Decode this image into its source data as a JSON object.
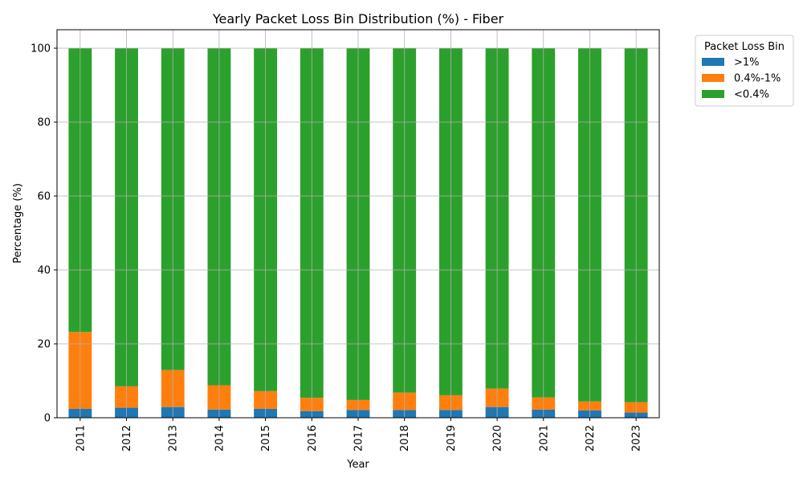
{
  "chart_data": {
    "type": "bar",
    "stacked": true,
    "title": "Yearly Packet Loss Bin Distribution (%) - Fiber",
    "xlabel": "Year",
    "ylabel": "Percentage (%)",
    "ylim": [
      0,
      105
    ],
    "yticks": [
      0,
      20,
      40,
      60,
      80,
      100
    ],
    "grid": true,
    "legend": {
      "title": "Packet Loss Bin",
      "placement": "outside-top-right"
    },
    "categories": [
      "2011",
      "2012",
      "2013",
      "2014",
      "2015",
      "2016",
      "2017",
      "2018",
      "2019",
      "2020",
      "2021",
      "2022",
      "2023"
    ],
    "series": [
      {
        "name": ">1%",
        "color": "#1f77b4",
        "values": [
          2.4,
          2.7,
          2.9,
          2.2,
          2.4,
          1.8,
          2.1,
          2.1,
          2.1,
          2.9,
          2.2,
          2.0,
          1.4
        ]
      },
      {
        "name": "0.4%-1%",
        "color": "#ff7f0e",
        "values": [
          20.8,
          5.8,
          10.0,
          6.6,
          4.8,
          3.6,
          2.7,
          4.7,
          4.0,
          5.0,
          3.3,
          2.4,
          2.8
        ]
      },
      {
        "name": "<0.4%",
        "color": "#2ca02c",
        "values": [
          76.8,
          91.5,
          87.1,
          91.2,
          92.8,
          94.6,
          95.2,
          93.2,
          93.9,
          92.1,
          94.5,
          95.6,
          95.8
        ]
      }
    ]
  }
}
